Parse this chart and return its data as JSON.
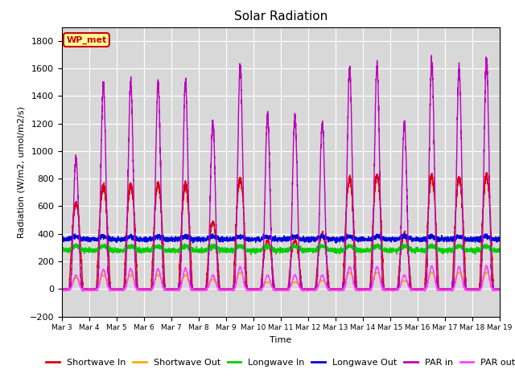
{
  "title": "Solar Radiation",
  "ylabel": "Radiation (W/m2, umol/m2/s)",
  "xlabel": "Time",
  "ylim": [
    -200,
    1900
  ],
  "yticks": [
    -200,
    0,
    200,
    400,
    600,
    800,
    1000,
    1200,
    1400,
    1600,
    1800
  ],
  "background_color": "#d8d8d8",
  "annotation_text": "WP_met",
  "annotation_bg": "#ffff99",
  "annotation_border": "#cc0000",
  "num_days": 16,
  "start_day": 3,
  "series": {
    "shortwave_in": {
      "color": "#dd0000",
      "label": "Shortwave In",
      "lw": 1.0
    },
    "shortwave_out": {
      "color": "#ffaa00",
      "label": "Shortwave Out",
      "lw": 1.0
    },
    "longwave_in": {
      "color": "#00cc00",
      "label": "Longwave In",
      "lw": 1.0
    },
    "longwave_out": {
      "color": "#0000dd",
      "label": "Longwave Out",
      "lw": 1.0
    },
    "par_in": {
      "color": "#bb00bb",
      "label": "PAR in",
      "lw": 1.0
    },
    "par_out": {
      "color": "#ff44ff",
      "label": "PAR out",
      "lw": 1.0
    }
  },
  "grid_color": "#ffffff",
  "title_fontsize": 11,
  "tick_fontsize": 8,
  "legend_fontsize": 8,
  "day_peaks_sw": [
    620,
    750,
    760,
    760,
    760,
    480,
    800,
    350,
    350,
    400,
    800,
    820,
    400,
    820,
    800,
    820
  ],
  "day_peaks_par": [
    950,
    1480,
    1490,
    1490,
    1500,
    1200,
    1600,
    1250,
    1250,
    1200,
    1600,
    1620,
    1200,
    1650,
    1600,
    1660
  ],
  "day_peaks_sw_out": [
    80,
    100,
    100,
    100,
    100,
    70,
    120,
    50,
    50,
    60,
    120,
    120,
    60,
    120,
    120,
    120
  ],
  "day_peaks_par_out": [
    100,
    140,
    145,
    145,
    150,
    100,
    160,
    100,
    100,
    100,
    160,
    160,
    100,
    165,
    160,
    165
  ],
  "lw_in_base": 280,
  "lw_out_base": 360
}
